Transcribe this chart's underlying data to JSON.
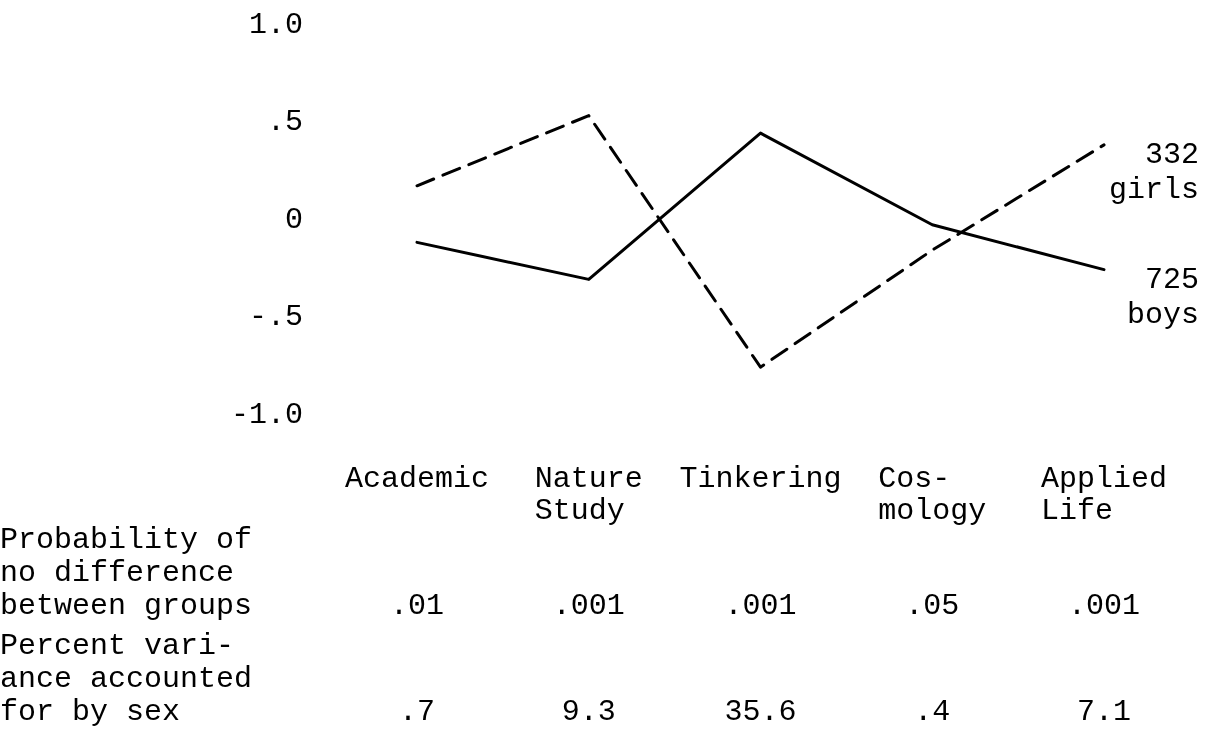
{
  "chart_data": {
    "type": "line",
    "categories": [
      "Academic",
      "Nature\nStudy",
      "Tinkering",
      "Cos-\nmology",
      "Applied\nLife"
    ],
    "ylim": [
      -1,
      1
    ],
    "yticks": [
      {
        "value": 1,
        "label": "1.0"
      },
      {
        "value": 0.5,
        "label": ".5"
      },
      0,
      {
        "value": -0.5,
        "label": "-.5"
      },
      {
        "value": -1,
        "label": "-1.0"
      }
    ],
    "series": [
      {
        "name": "332\ngirls",
        "color": "#000000",
        "line_style": "dashed",
        "values": [
          0.16,
          0.52,
          -0.77,
          -0.17,
          0.37
        ]
      },
      {
        "name": "725\nboys",
        "color": "#000000",
        "line_style": "solid",
        "values": [
          -0.13,
          -0.32,
          0.43,
          -0.04,
          -0.27
        ]
      }
    ],
    "annotations": [
      "Probability of\nno difference\nbetween groups",
      ".01",
      ".001",
      ".001",
      ".05",
      ".001",
      "Percent vari-\nance accounted\nfor by sex",
      ".7",
      "9.3",
      "35.6",
      ".4",
      "7.1"
    ]
  }
}
